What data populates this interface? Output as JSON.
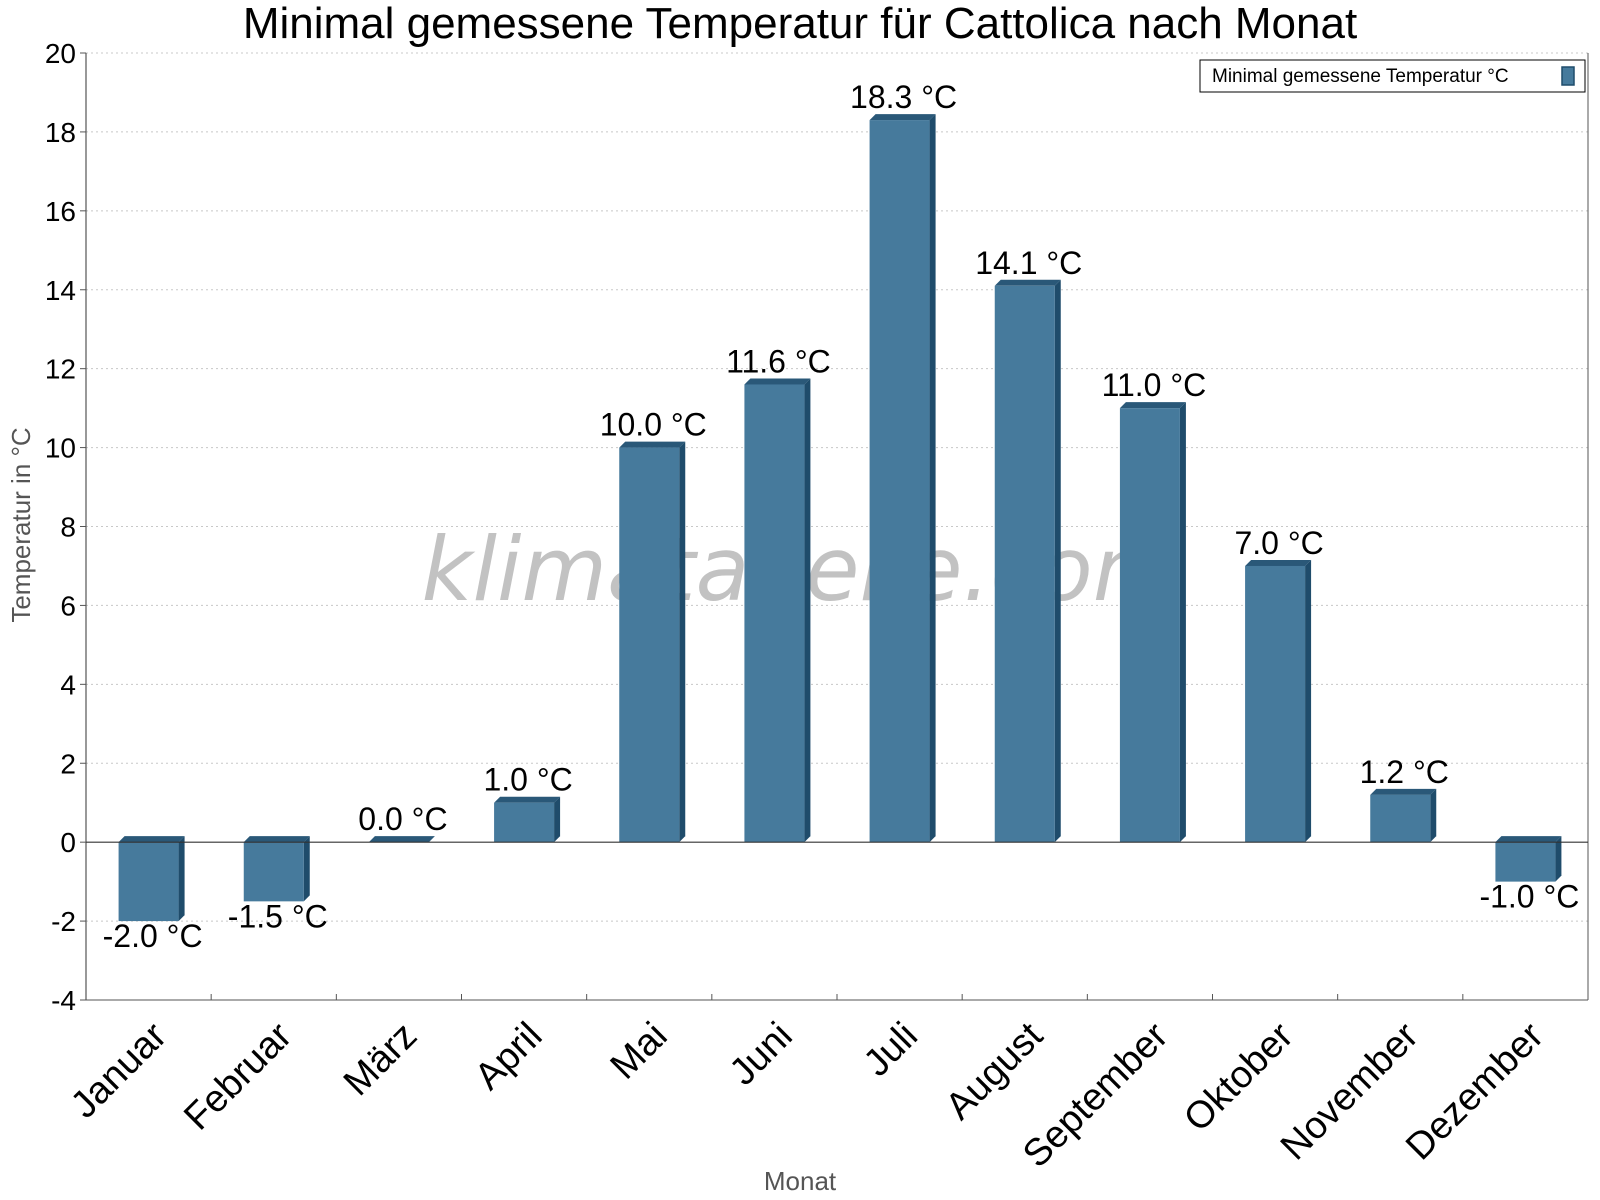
{
  "chart_data": {
    "type": "bar",
    "title": "Minimal gemessene Temperatur für Cattolica nach Monat",
    "xlabel": "Monat",
    "ylabel": "Temperatur in °C",
    "ylim": [
      -4,
      20
    ],
    "ytick_step": 2,
    "grid": true,
    "legend_position": "top-right",
    "unit": "°C",
    "categories": [
      "Januar",
      "Februar",
      "März",
      "April",
      "Mai",
      "Juni",
      "Juli",
      "August",
      "September",
      "Oktober",
      "November",
      "Dezember"
    ],
    "series": [
      {
        "name": "Minimal gemessene Temperatur °C",
        "values": [
          -2.0,
          -1.5,
          0.0,
          1.0,
          10.0,
          11.6,
          18.3,
          14.1,
          11.0,
          7.0,
          1.2,
          -1.0
        ],
        "labels": [
          "-2.0 °C",
          "-1.5 °C",
          "0.0 °C",
          "1.0 °C",
          "10.0 °C",
          "11.6 °C",
          "18.3 °C",
          "14.1 °C",
          "11.0 °C",
          "7.0 °C",
          "1.2 °C",
          "-1.0 °C"
        ]
      }
    ],
    "watermark": "klimatabelle.com"
  },
  "colors": {
    "bar_front": "#467a9c",
    "bar_side": "#1f4c6b",
    "bar_top": "#2a5878",
    "grid": "#c8c8c8",
    "axis": "#555555"
  }
}
